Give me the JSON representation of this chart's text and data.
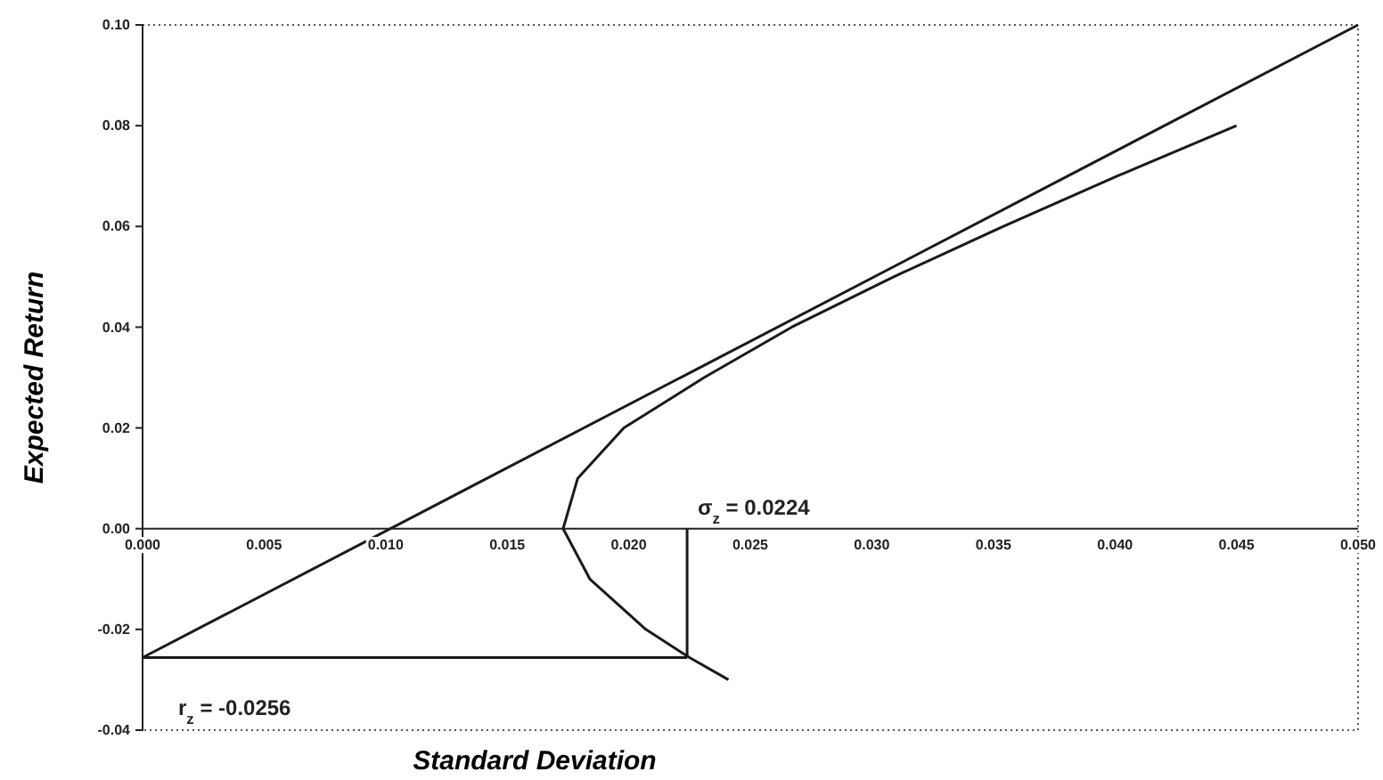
{
  "chart_data": {
    "type": "line",
    "xlabel": "Standard Deviation",
    "ylabel": "Expected Return",
    "xlim": [
      0,
      0.05
    ],
    "ylim": [
      -0.04,
      0.1
    ],
    "xticks": [
      {
        "value": 0,
        "label": "0.000"
      },
      {
        "value": 0.005,
        "label": "0.005"
      },
      {
        "value": 0.01,
        "label": "0.010"
      },
      {
        "value": 0.015,
        "label": "0.015"
      },
      {
        "value": 0.02,
        "label": "0.020"
      },
      {
        "value": 0.025,
        "label": "0.025"
      },
      {
        "value": 0.03,
        "label": "0.030"
      },
      {
        "value": 0.035,
        "label": "0.035"
      },
      {
        "value": 0.04,
        "label": "0.040"
      },
      {
        "value": 0.045,
        "label": "0.045"
      },
      {
        "value": 0.05,
        "label": "0.050"
      }
    ],
    "yticks": [
      {
        "value": -0.04,
        "label": "-0.04"
      },
      {
        "value": -0.02,
        "label": "-0.02"
      },
      {
        "value": 0,
        "label": "0.00"
      },
      {
        "value": 0.02,
        "label": "0.02"
      },
      {
        "value": 0.04,
        "label": "0.04"
      },
      {
        "value": 0.06,
        "label": "0.06"
      },
      {
        "value": 0.08,
        "label": "0.08"
      },
      {
        "value": 0.1,
        "label": "0.10"
      }
    ],
    "grid": false,
    "marker": "none",
    "line_style": "solid",
    "series": [
      {
        "color": "#1a1a1a",
        "x": [
          0.0241,
          0.0225,
          0.0207,
          0.0184,
          0.0173,
          0.0179,
          0.0198,
          0.0231,
          0.0267,
          0.0309,
          0.0354,
          0.0401,
          0.045
        ],
        "values": [
          -0.03,
          -0.0256,
          -0.02,
          -0.01,
          0,
          0.01,
          0.02,
          0.03,
          0.04,
          0.05,
          0.06,
          0.07,
          0.08
        ]
      },
      {
        "color": "#1a1a1a",
        "x": [
          0,
          0.05
        ],
        "values": [
          -0.0256,
          0.1
        ]
      },
      {
        "color": "#1a1a1a",
        "x": [
          0,
          0.0224
        ],
        "values": [
          -0.0256,
          -0.0256
        ]
      },
      {
        "color": "#1a1a1a",
        "x": [
          0.0224,
          0.0224
        ],
        "values": [
          -0.0256,
          0
        ]
      }
    ],
    "annotations": [
      {
        "text": "σ$_{z}$ = 0.0224",
        "x": 0.0224,
        "y": 0
      },
      {
        "text": "r$_{z}$ = -0.0256",
        "x": 0,
        "y": -0.0256
      }
    ]
  }
}
